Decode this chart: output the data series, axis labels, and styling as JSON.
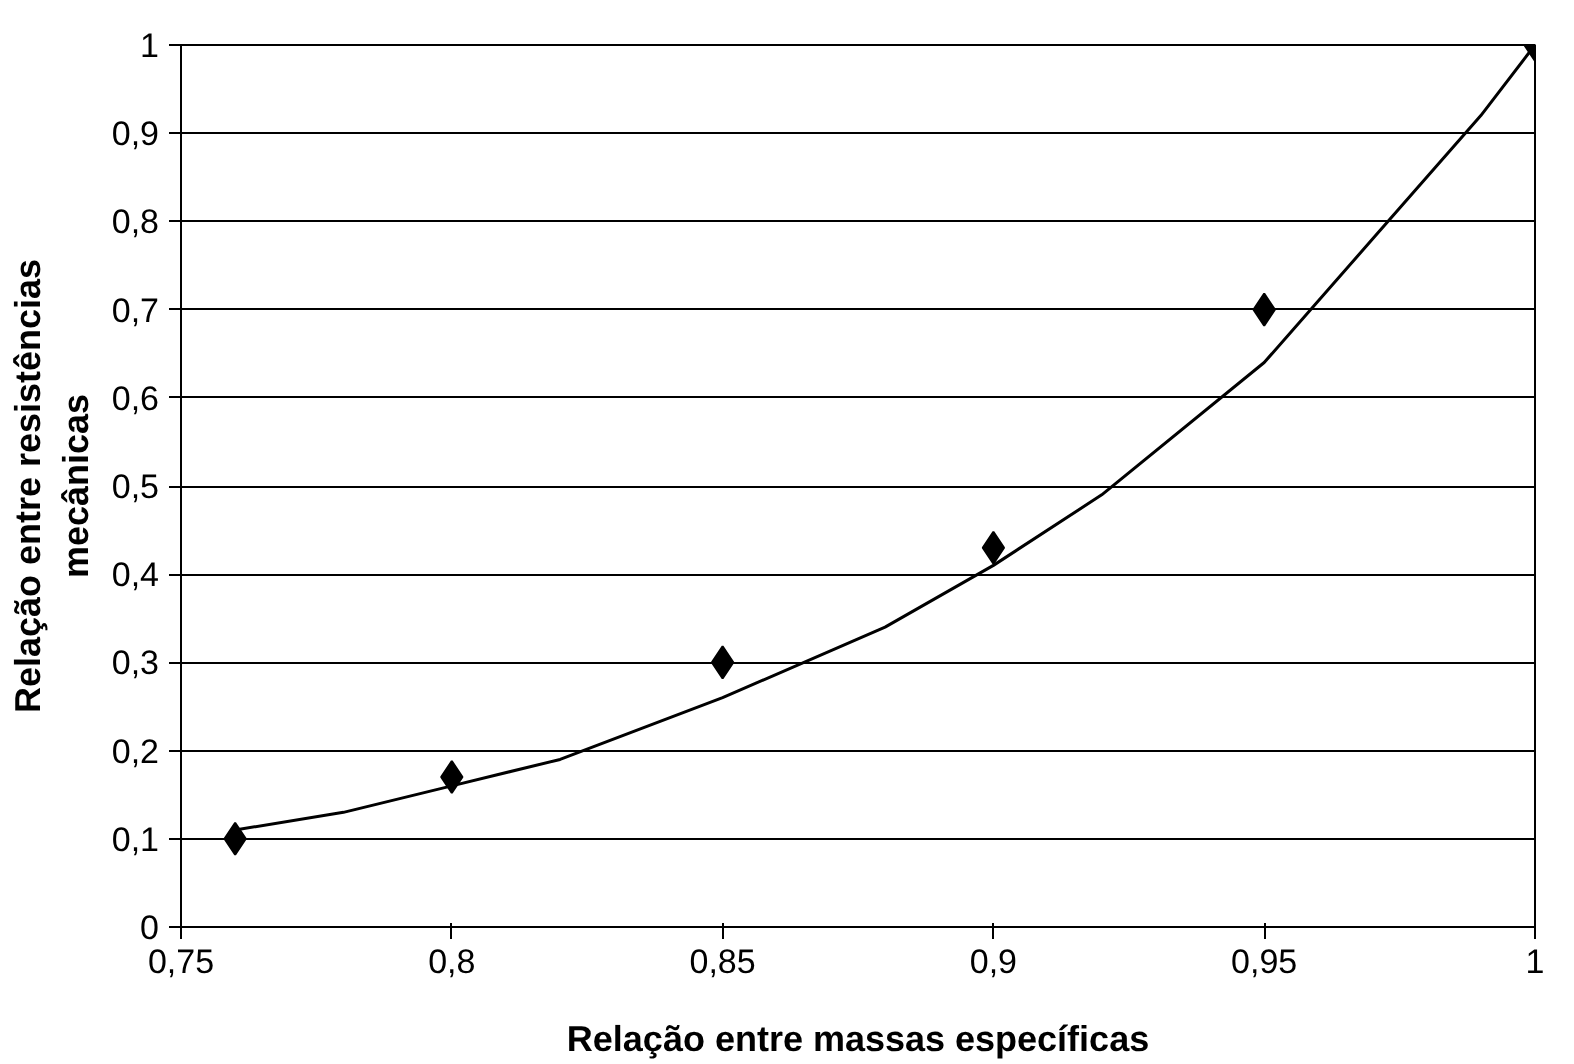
{
  "chart_data": {
    "type": "scatter",
    "xlabel": "Relação entre massas específicas",
    "ylabel": "Relação entre resistências\nmecânicas",
    "xlim": [
      0.75,
      1.0
    ],
    "xticks": [
      {
        "value": 0.75,
        "label": "0,75"
      },
      {
        "value": 0.8,
        "label": "0,8"
      },
      {
        "value": 0.85,
        "label": "0,85"
      },
      {
        "value": 0.9,
        "label": "0,9"
      },
      {
        "value": 0.95,
        "label": "0,95"
      },
      {
        "value": 1.0,
        "label": "1"
      }
    ],
    "ylim": [
      0,
      1
    ],
    "yticks": [
      0,
      {
        "value": 0.1,
        "label": "0,1"
      },
      {
        "value": 0.2,
        "label": "0,2"
      },
      {
        "value": 0.3,
        "label": "0,3"
      },
      {
        "value": 0.4,
        "label": "0,4"
      },
      {
        "value": 0.5,
        "label": "0,5"
      },
      {
        "value": 0.6,
        "label": "0,6"
      },
      {
        "value": 0.7,
        "label": "0,7"
      },
      {
        "value": 0.8,
        "label": "0,8"
      },
      {
        "value": 0.9,
        "label": "0,9"
      },
      1
    ],
    "grid": "y",
    "marker": "diamond",
    "series": [
      {
        "color": "#000000",
        "x": [
          0.76,
          0.8,
          0.85,
          0.9,
          0.95,
          1.0
        ],
        "values": [
          0.1,
          0.17,
          0.3,
          0.43,
          0.7,
          1.0
        ]
      },
      {
        "type": "line",
        "color": "#000000",
        "marker": "none",
        "x": [
          0.76,
          0.78,
          0.8,
          0.82,
          0.85,
          0.88,
          0.9,
          0.92,
          0.95,
          0.97,
          0.99,
          1.0
        ],
        "values": [
          0.11,
          0.13,
          0.16,
          0.19,
          0.26,
          0.34,
          0.41,
          0.49,
          0.64,
          0.78,
          0.92,
          1.0
        ]
      }
    ]
  }
}
